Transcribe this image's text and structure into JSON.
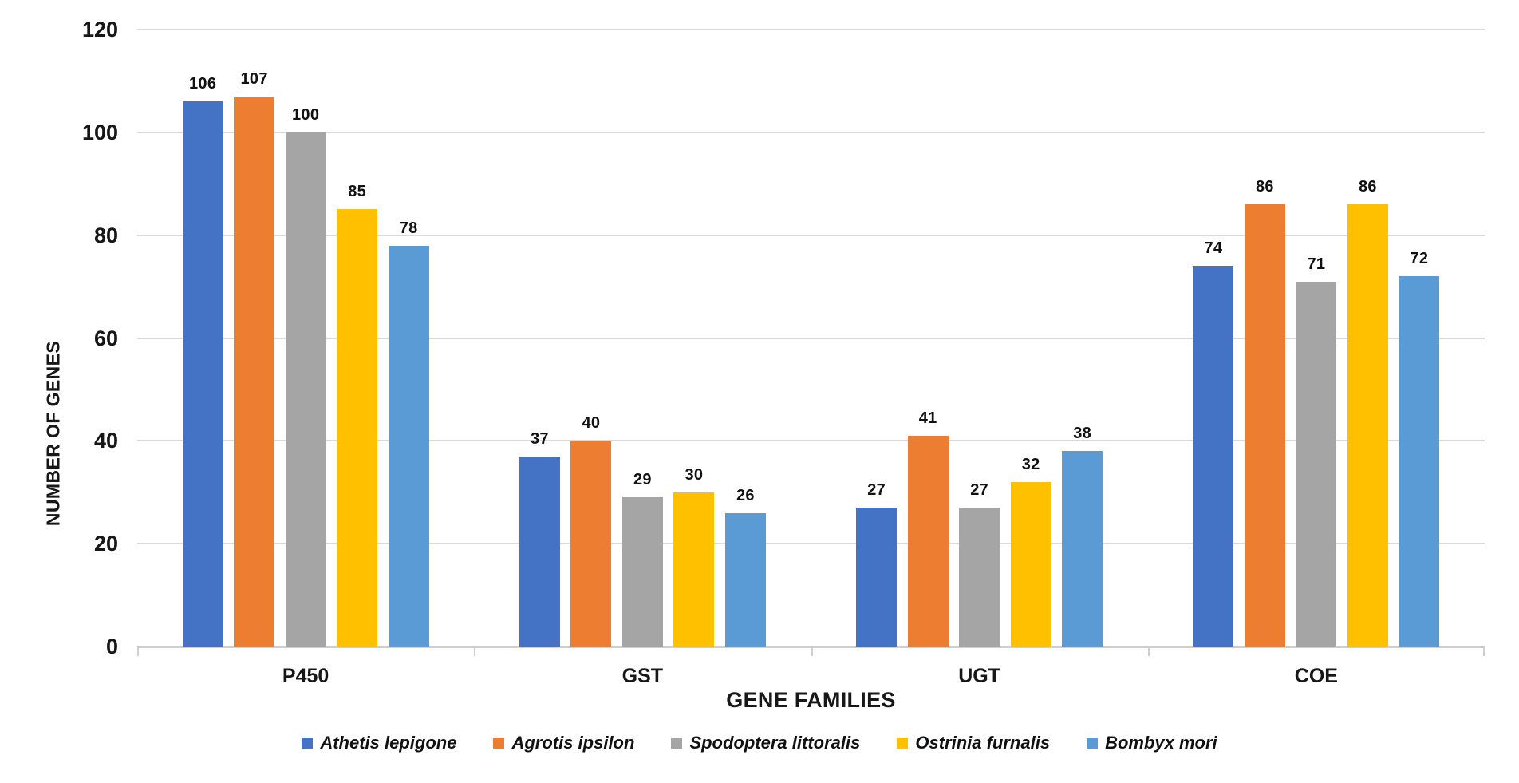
{
  "chart_data": {
    "type": "bar",
    "title": "",
    "xlabel": "GENE FAMILIES",
    "ylabel": "NUMBER OF GENES",
    "categories": [
      "P450",
      "GST",
      "UGT",
      "COE"
    ],
    "series": [
      {
        "name": "Athetis lepigone",
        "color": "#4472C4",
        "values": [
          106,
          37,
          27,
          74
        ]
      },
      {
        "name": "Agrotis ipsilon",
        "color": "#ED7D31",
        "values": [
          107,
          40,
          41,
          86
        ]
      },
      {
        "name": "Spodoptera littoralis",
        "color": "#A5A5A5",
        "values": [
          100,
          29,
          27,
          71
        ]
      },
      {
        "name": "Ostrinia furnalis",
        "color": "#FFC000",
        "values": [
          85,
          30,
          32,
          86
        ]
      },
      {
        "name": "Bombyx mori",
        "color": "#5B9BD5",
        "values": [
          78,
          26,
          38,
          72
        ]
      }
    ],
    "ylim": [
      0,
      120
    ],
    "ytick_step": 20,
    "grid": "horizontal",
    "legend_position": "bottom",
    "bar_value_labels": true,
    "gridline_color": "#D9D9D9",
    "axis_line_color": "#CFCFCF",
    "text_color": "#171717"
  }
}
